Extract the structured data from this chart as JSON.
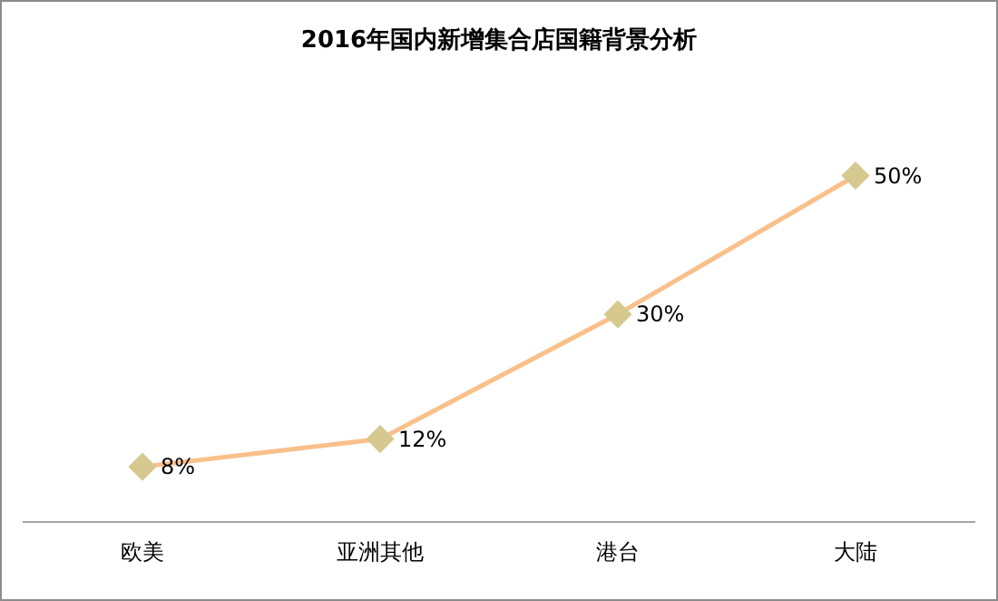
{
  "chart_data": {
    "type": "line",
    "title": "2016年国内新增集合店国籍背景分析",
    "categories": [
      "欧美",
      "亚洲其他",
      "港台",
      "大陆"
    ],
    "series": [
      {
        "color": "#f9c08a",
        "colors": [
          "#d6c98f",
          "#d6c98f",
          "#d6c98f",
          "#d6c98f"
        ],
        "values": [
          8,
          12,
          30,
          50
        ],
        "value_labels": [
          "8%",
          "12%",
          "30%",
          "50%"
        ]
      }
    ],
    "marker": "diamond",
    "line_style": "solid",
    "legend": false,
    "grid": false,
    "tick_labels": "x"
  }
}
